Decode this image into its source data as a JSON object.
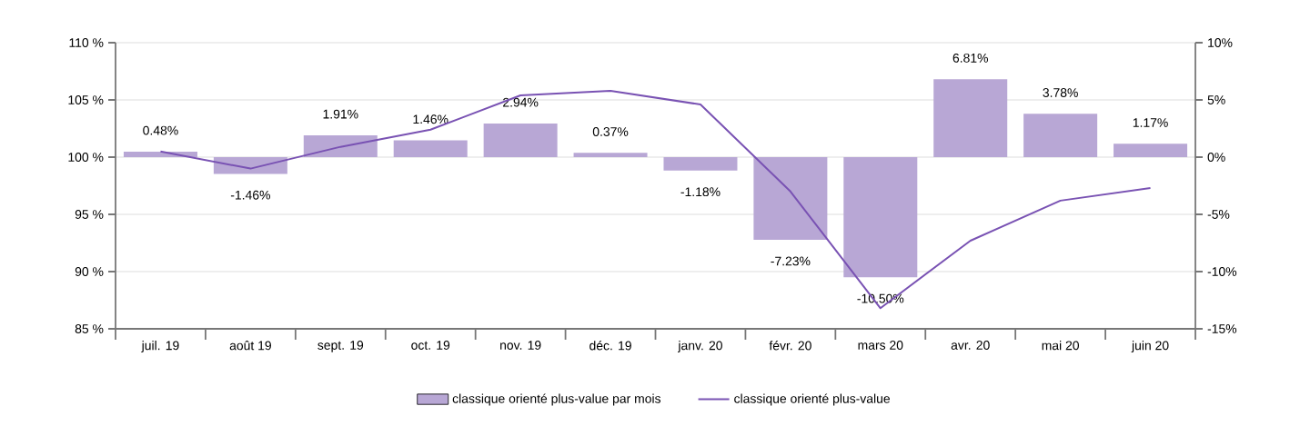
{
  "chart_data": {
    "type": "bar",
    "categories": [
      "juil. 19",
      "août 19",
      "sept. 19",
      "oct. 19",
      "nov. 19",
      "déc. 19",
      "janv. 20",
      "févr. 20",
      "mars 20",
      "avr. 20",
      "mai 20",
      "juin 20"
    ],
    "series": [
      {
        "name": "classique orienté plus-value par mois",
        "axis": "y2",
        "color": "#b8a7d5",
        "values": [
          0.48,
          -1.46,
          1.91,
          1.46,
          2.94,
          0.37,
          -1.18,
          -7.23,
          -10.5,
          6.81,
          3.78,
          1.17
        ],
        "value_labels": [
          "0.48%",
          "-1.46%",
          "1.91%",
          "1.46%",
          "2.94%",
          "0.37%",
          "-1.18%",
          "-7.23%",
          "-10.50%",
          "6.81%",
          "3.78%",
          "1.17%"
        ]
      },
      {
        "name": "classique orienté plus-value",
        "type": "line",
        "color": "#7952b3",
        "values": [
          100.5,
          99.0,
          100.9,
          102.4,
          105.4,
          105.8,
          104.6,
          97.0,
          86.8,
          92.7,
          96.2,
          97.3
        ]
      }
    ],
    "ylim": [
      85,
      110
    ],
    "yticks": [
      {
        "value": 85,
        "label": "85 %"
      },
      {
        "value": 90,
        "label": "90 %"
      },
      {
        "value": 95,
        "label": "95 %"
      },
      {
        "value": 100,
        "label": "100 %"
      },
      {
        "value": 105,
        "label": "105 %"
      },
      {
        "value": 110,
        "label": "110 %"
      }
    ],
    "y2lim": [
      -15,
      10
    ],
    "y2ticks": [
      {
        "value": -15,
        "label": "-15%"
      },
      {
        "value": -10,
        "label": "-10%"
      },
      {
        "value": -5,
        "label": "-5%"
      },
      {
        "value": 0,
        "label": "0%"
      },
      {
        "value": 5,
        "label": "5%"
      },
      {
        "value": 10,
        "label": "10%"
      }
    ],
    "grid": "y",
    "legend": "bottom",
    "marker": "none"
  }
}
